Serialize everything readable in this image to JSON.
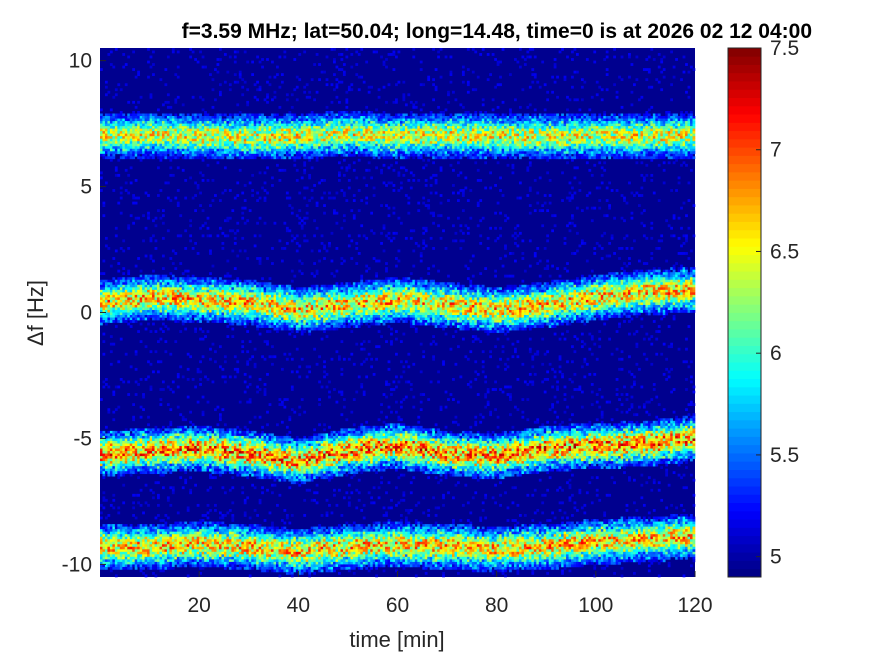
{
  "chart_data": {
    "type": "heatmap",
    "title": "f=3.59 MHz;  lat=50.04; long=14.48, time=0 is at 2026 02 12 04:00",
    "xlabel": "time [min]",
    "ylabel": "Δf [Hz]",
    "xlim": [
      0,
      120
    ],
    "ylim": [
      -10.5,
      10.5
    ],
    "xticks": [
      20,
      40,
      60,
      80,
      100,
      120
    ],
    "yticks": [
      -10,
      -5,
      0,
      5,
      10
    ],
    "grid": false,
    "colormap": "jet",
    "clim": [
      4.9,
      7.5
    ],
    "colorbar_ticks": [
      5,
      5.5,
      6,
      6.5,
      7,
      7.5
    ],
    "colorbar_position": "right",
    "background_level": 4.95,
    "traces": [
      {
        "x": [
          0,
          10,
          20,
          30,
          40,
          50,
          60,
          70,
          80,
          90,
          100,
          110,
          120
        ],
        "y": [
          7.0,
          7.05,
          7.0,
          6.95,
          7.0,
          7.1,
          7.0,
          7.05,
          7.0,
          7.0,
          7.0,
          7.0,
          7.0
        ],
        "peak": 6.7
      },
      {
        "x": [
          0,
          10,
          20,
          30,
          40,
          50,
          60,
          70,
          80,
          90,
          100,
          110,
          120
        ],
        "y": [
          0.4,
          0.6,
          0.5,
          0.4,
          0.1,
          0.3,
          0.5,
          0.3,
          0.1,
          0.3,
          0.6,
          0.8,
          0.9
        ],
        "peak": 6.9
      },
      {
        "x": [
          0,
          10,
          20,
          30,
          40,
          50,
          60,
          70,
          80,
          90,
          100,
          110,
          120
        ],
        "y": [
          -5.6,
          -5.5,
          -5.4,
          -5.6,
          -5.9,
          -5.5,
          -5.3,
          -5.6,
          -5.7,
          -5.4,
          -5.3,
          -5.2,
          -5.0
        ],
        "peak": 7.1
      },
      {
        "x": [
          0,
          10,
          20,
          30,
          40,
          50,
          60,
          70,
          80,
          90,
          100,
          110,
          120
        ],
        "y": [
          -9.3,
          -9.3,
          -9.2,
          -9.3,
          -9.5,
          -9.3,
          -9.2,
          -9.3,
          -9.4,
          -9.3,
          -9.1,
          -9.0,
          -8.9
        ],
        "peak": 6.9
      }
    ]
  }
}
